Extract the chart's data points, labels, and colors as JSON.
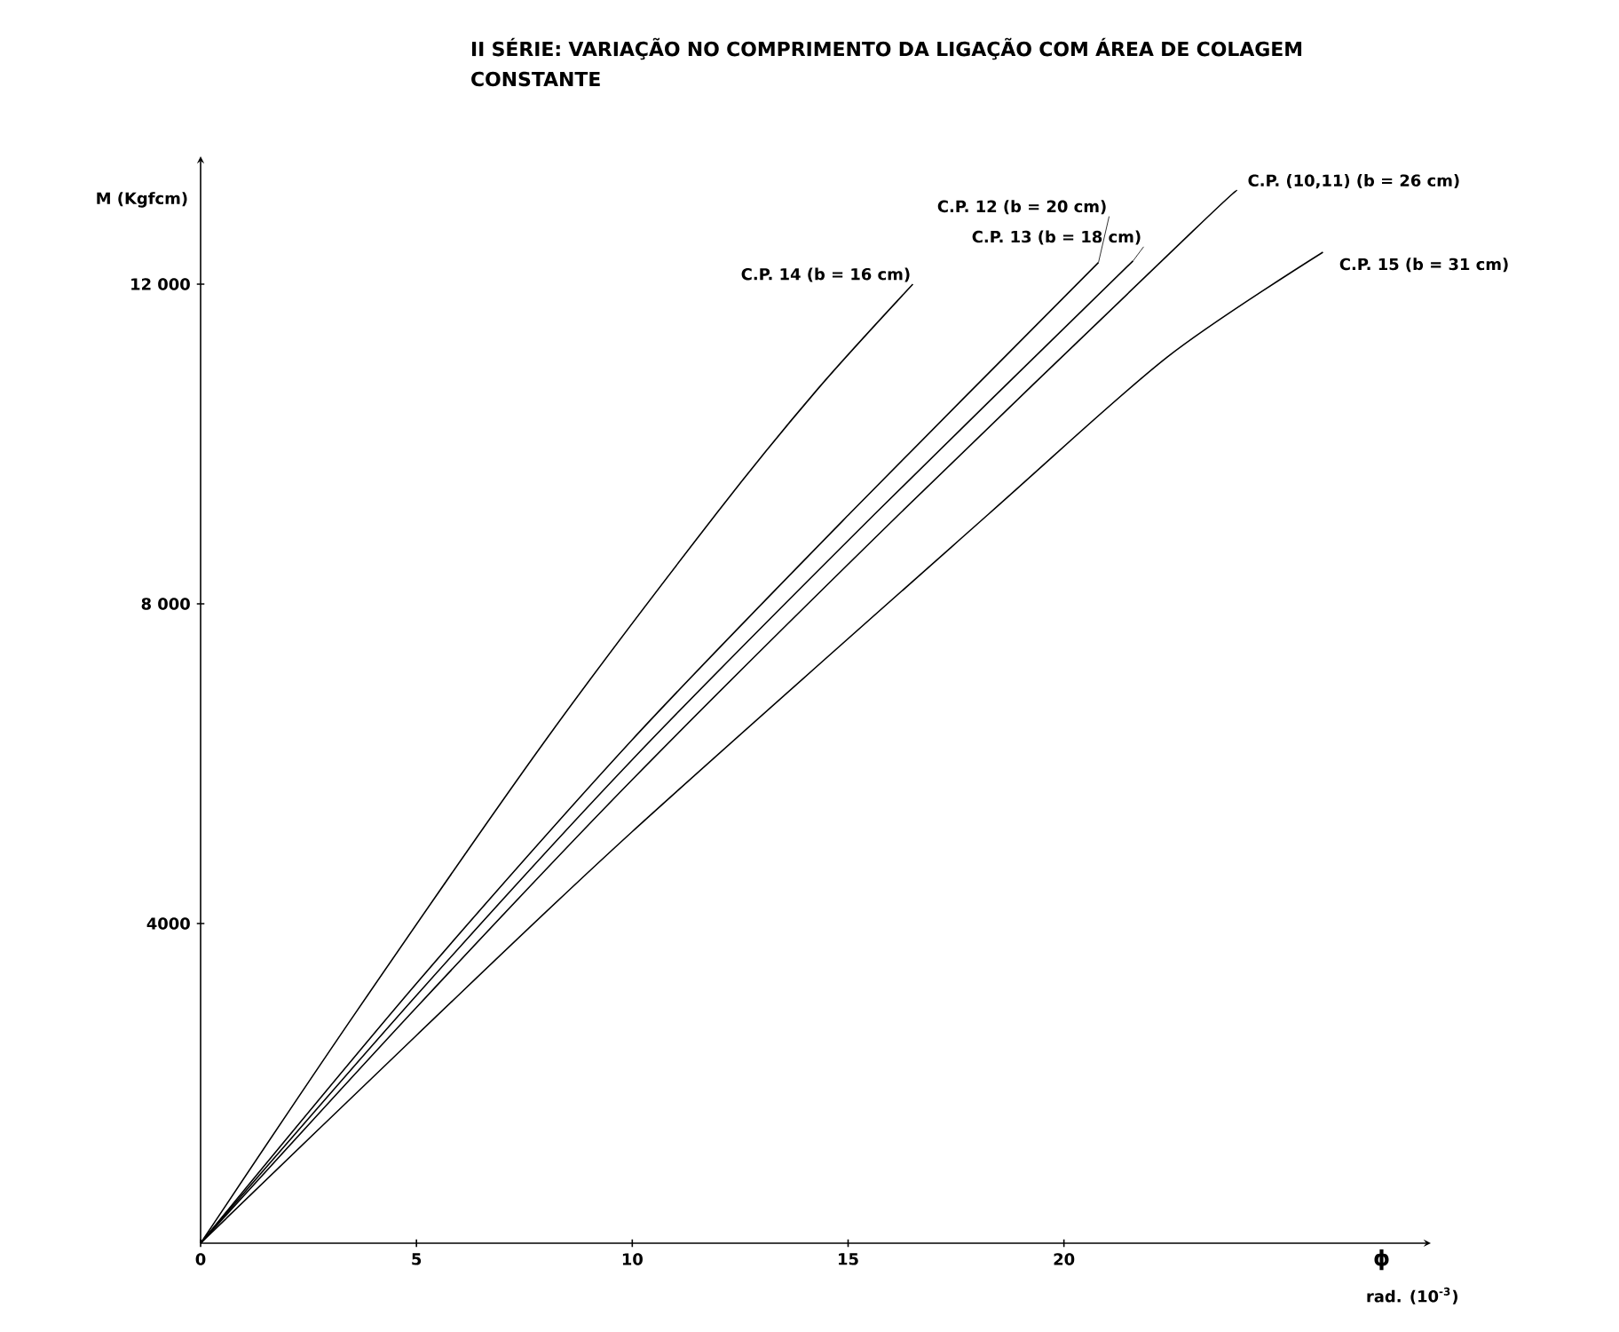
{
  "chart_data": {
    "type": "line",
    "title": "II SÉRIE: VARIAÇÃO NO COMPRIMENTO DA LIGAÇÃO COM ÁREA DE COLAGEM CONSTANTE",
    "ylabel": "M (Kgfcm)",
    "xlabel": "rad. (10$^{-3}$)",
    "annotations": [
      "ϕ"
    ],
    "xlim": [
      0,
      28.5
    ],
    "ylim": [
      0,
      13600
    ],
    "xticks": [
      0,
      5,
      10,
      15,
      20
    ],
    "yticks": [
      {
        "value": 4000,
        "label": "4000"
      },
      {
        "value": 8000,
        "label": "8 000"
      },
      {
        "value": 12000,
        "label": "12 000"
      }
    ],
    "grid": false,
    "series": [
      {
        "name": "C.P. 14 (b = 16 cm)",
        "color": "#000000",
        "x": [
          0,
          3.6,
          8,
          11.95,
          14.3,
          16.5
        ],
        "values": [
          0,
          2890,
          6300,
          9130,
          10690,
          12000
        ]
      },
      {
        "name": "C.P. 12 (b = 20 cm)",
        "color": "#000000",
        "x": [
          0,
          5,
          10,
          15.04,
          20.8
        ],
        "values": [
          0,
          3250,
          6300,
          9130,
          12270
        ]
      },
      {
        "name": "C.P. 13 (b = 18 cm)",
        "color": "#000000",
        "x": [
          0,
          5,
          10,
          15.63,
          21.6
        ],
        "values": [
          0,
          3100,
          6050,
          9130,
          12290
        ]
      },
      {
        "name": "C.P. (10,11) (b = 26 cm)",
        "color": "#000000",
        "x": [
          0,
          5,
          10,
          16.2,
          23.0,
          24.0
        ],
        "values": [
          0,
          2950,
          5800,
          9130,
          12670,
          13170
        ]
      },
      {
        "name": "C.P. 15 (b = 31 cm)",
        "color": "#000000",
        "x": [
          0,
          5,
          10,
          18.27,
          22.4,
          26.0
        ],
        "values": [
          0,
          2600,
          5150,
          9130,
          11090,
          12400
        ]
      }
    ]
  }
}
